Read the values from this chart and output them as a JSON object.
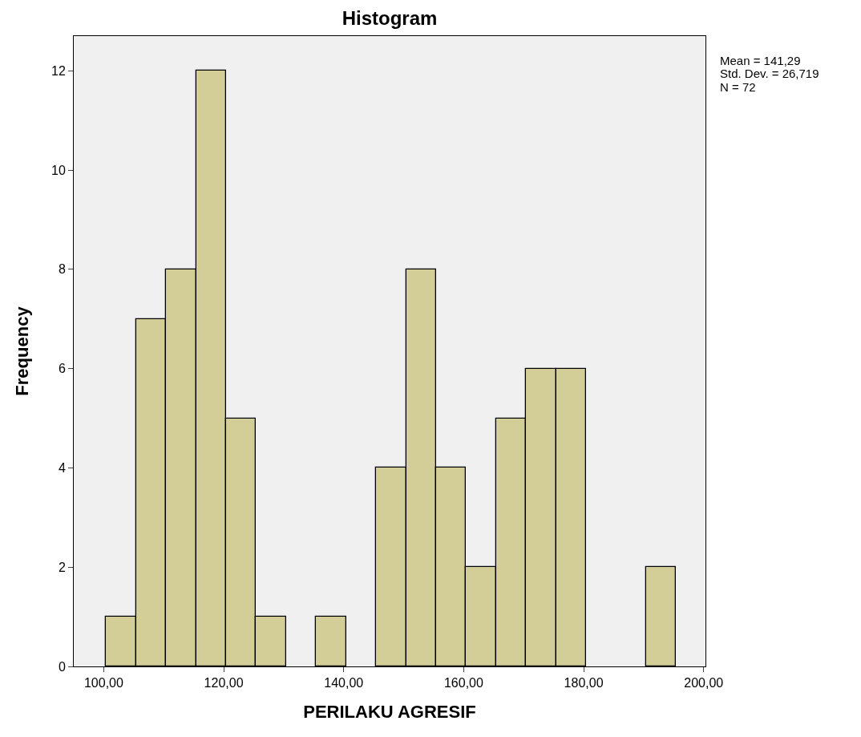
{
  "chart_data": {
    "type": "histogram",
    "title": "Histogram",
    "xlabel": "PERILAKU AGRESIF",
    "ylabel": "Frequency",
    "bins": [
      100.4,
      105.4,
      110.4,
      115.4,
      120.4,
      125.4,
      130.4,
      135.4,
      140.4,
      145.4,
      150.4,
      155.4,
      160.4,
      165.4,
      170.4,
      175.4,
      180.4,
      185.4,
      190.4,
      195.4
    ],
    "values": [
      1,
      7,
      8,
      12,
      5,
      1,
      0,
      1,
      0,
      4,
      8,
      4,
      2,
      5,
      6,
      6,
      0,
      0,
      2
    ],
    "color": "#d3ce97",
    "xlim": [
      95,
      200.3
    ],
    "xticks": [
      {
        "value": 100,
        "label": "100,00"
      },
      {
        "value": 120,
        "label": "120,00"
      },
      {
        "value": 140,
        "label": "140,00"
      },
      {
        "value": 160,
        "label": "160,00"
      },
      {
        "value": 180,
        "label": "180,00"
      },
      {
        "value": 200,
        "label": "200,00"
      }
    ],
    "ylim": [
      0,
      12.7
    ],
    "yticks": [
      0,
      2,
      4,
      6,
      8,
      10,
      12
    ],
    "annotations": [
      "Mean = 141,29",
      "Std. Dev. = 26,719",
      "N = 72"
    ],
    "grid": false
  }
}
